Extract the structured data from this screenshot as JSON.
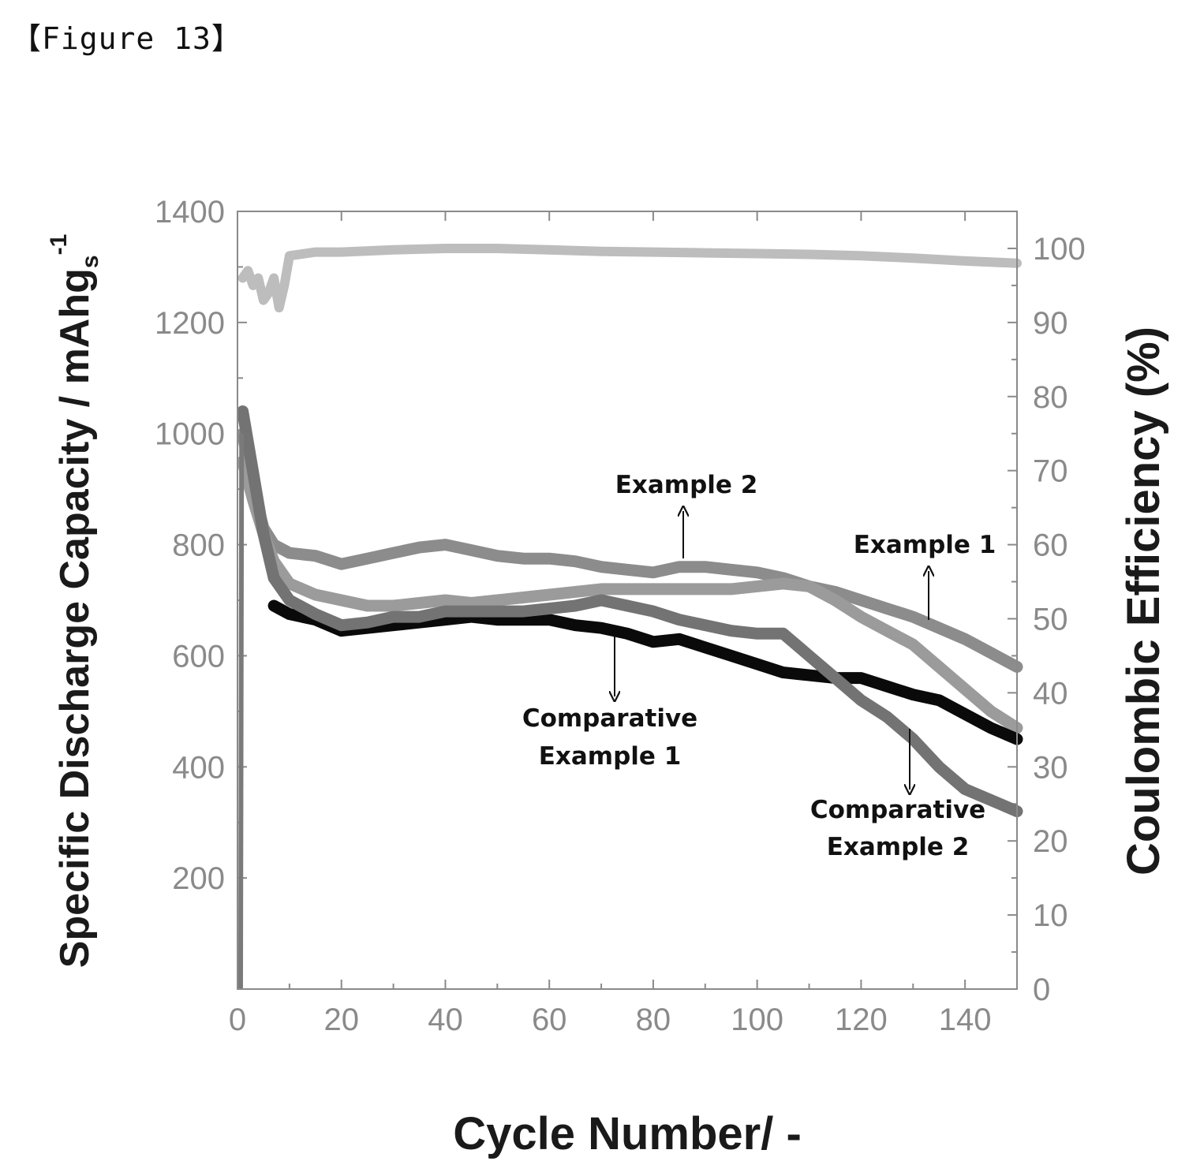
{
  "figure_label": "【Figure 13】",
  "chart_data": {
    "type": "line",
    "title": "",
    "xlabel": "Cycle Number/ -",
    "ylabel": "Specific Discharge Capacity / mAhg",
    "ylabel_sub": "s",
    "ylabel_sup": "-1",
    "y2label": "Coulombic Efficiency (%)",
    "xlim": [
      0,
      150
    ],
    "ylim": [
      0,
      1400
    ],
    "y2lim": [
      0,
      105
    ],
    "x_ticks": [
      "0",
      "20",
      "40",
      "60",
      "80",
      "100",
      "120",
      "140"
    ],
    "y_ticks": [
      "200",
      "400",
      "600",
      "800",
      "1000",
      "1200",
      "1400"
    ],
    "y2_ticks": [
      "0",
      "10",
      "20",
      "30",
      "40",
      "50",
      "60",
      "70",
      "80",
      "90",
      "100"
    ],
    "grid": false,
    "legend": "none",
    "annotations": [
      {
        "lines": [
          "Example 2"
        ],
        "points_to": "Example 2"
      },
      {
        "lines": [
          "Example 1"
        ],
        "points_to": "Example 1"
      },
      {
        "lines": [
          "Comparative",
          "Example 1"
        ],
        "points_to": "Comparative Example 1"
      },
      {
        "lines": [
          "Comparative",
          "Example 2"
        ],
        "points_to": "Comparative Example 2"
      }
    ],
    "series": [
      {
        "name": "Example 2",
        "axis": "left",
        "color": "#8c8c8c",
        "x": [
          1,
          3,
          5,
          7,
          10,
          15,
          20,
          25,
          30,
          35,
          40,
          45,
          50,
          55,
          60,
          65,
          70,
          75,
          80,
          85,
          90,
          95,
          100,
          105,
          110,
          115,
          120,
          125,
          130,
          135,
          140,
          145,
          150
        ],
        "y": [
          1000,
          900,
          830,
          800,
          785,
          780,
          765,
          775,
          785,
          795,
          800,
          790,
          780,
          775,
          775,
          770,
          760,
          755,
          750,
          760,
          760,
          755,
          750,
          740,
          725,
          715,
          700,
          685,
          670,
          650,
          630,
          605,
          580
        ]
      },
      {
        "name": "Example 1",
        "axis": "left",
        "color": "#9b9b9b",
        "x": [
          1,
          3,
          5,
          7,
          10,
          15,
          20,
          25,
          30,
          35,
          40,
          45,
          50,
          55,
          60,
          65,
          70,
          75,
          80,
          85,
          90,
          95,
          100,
          105,
          110,
          115,
          120,
          125,
          130,
          135,
          140,
          145,
          150
        ],
        "y": [
          950,
          880,
          820,
          770,
          730,
          710,
          700,
          690,
          690,
          695,
          700,
          695,
          700,
          705,
          710,
          715,
          720,
          720,
          720,
          720,
          720,
          720,
          725,
          730,
          725,
          700,
          670,
          645,
          620,
          580,
          540,
          500,
          470
        ]
      },
      {
        "name": "Comparative Example 1",
        "axis": "left",
        "color": "#0a0a0a",
        "x": [
          7,
          10,
          15,
          20,
          25,
          30,
          35,
          40,
          45,
          50,
          55,
          60,
          65,
          70,
          75,
          80,
          85,
          90,
          95,
          100,
          105,
          110,
          115,
          120,
          125,
          130,
          135,
          140,
          145,
          150
        ],
        "y": [
          690,
          675,
          665,
          645,
          650,
          655,
          660,
          665,
          670,
          665,
          665,
          665,
          655,
          650,
          640,
          625,
          630,
          615,
          600,
          585,
          570,
          565,
          560,
          560,
          545,
          530,
          520,
          495,
          470,
          450
        ]
      },
      {
        "name": "Comparative Example 2",
        "axis": "left",
        "color": "#737373",
        "x": [
          1,
          3,
          5,
          7,
          10,
          15,
          20,
          25,
          30,
          35,
          40,
          45,
          50,
          55,
          60,
          65,
          70,
          75,
          80,
          85,
          90,
          95,
          100,
          105,
          110,
          115,
          120,
          125,
          130,
          135,
          140,
          145,
          150
        ],
        "y": [
          1040,
          930,
          820,
          740,
          700,
          675,
          655,
          660,
          670,
          670,
          680,
          680,
          680,
          680,
          685,
          690,
          700,
          690,
          680,
          665,
          655,
          645,
          640,
          640,
          600,
          560,
          520,
          490,
          450,
          400,
          360,
          340,
          320
        ]
      },
      {
        "name": "Coulombic Efficiency",
        "axis": "right",
        "color": "#bdbdbd",
        "x": [
          1,
          2,
          3,
          4,
          5,
          6,
          7,
          8,
          9,
          10,
          15,
          20,
          30,
          40,
          50,
          60,
          70,
          80,
          90,
          100,
          110,
          120,
          130,
          140,
          150
        ],
        "y": [
          96,
          97,
          95,
          96,
          93,
          94,
          96,
          92,
          95,
          99,
          99.5,
          99.5,
          99.8,
          100,
          100,
          99.8,
          99.6,
          99.5,
          99.4,
          99.3,
          99.2,
          99,
          98.7,
          98.3,
          98
        ]
      }
    ]
  }
}
